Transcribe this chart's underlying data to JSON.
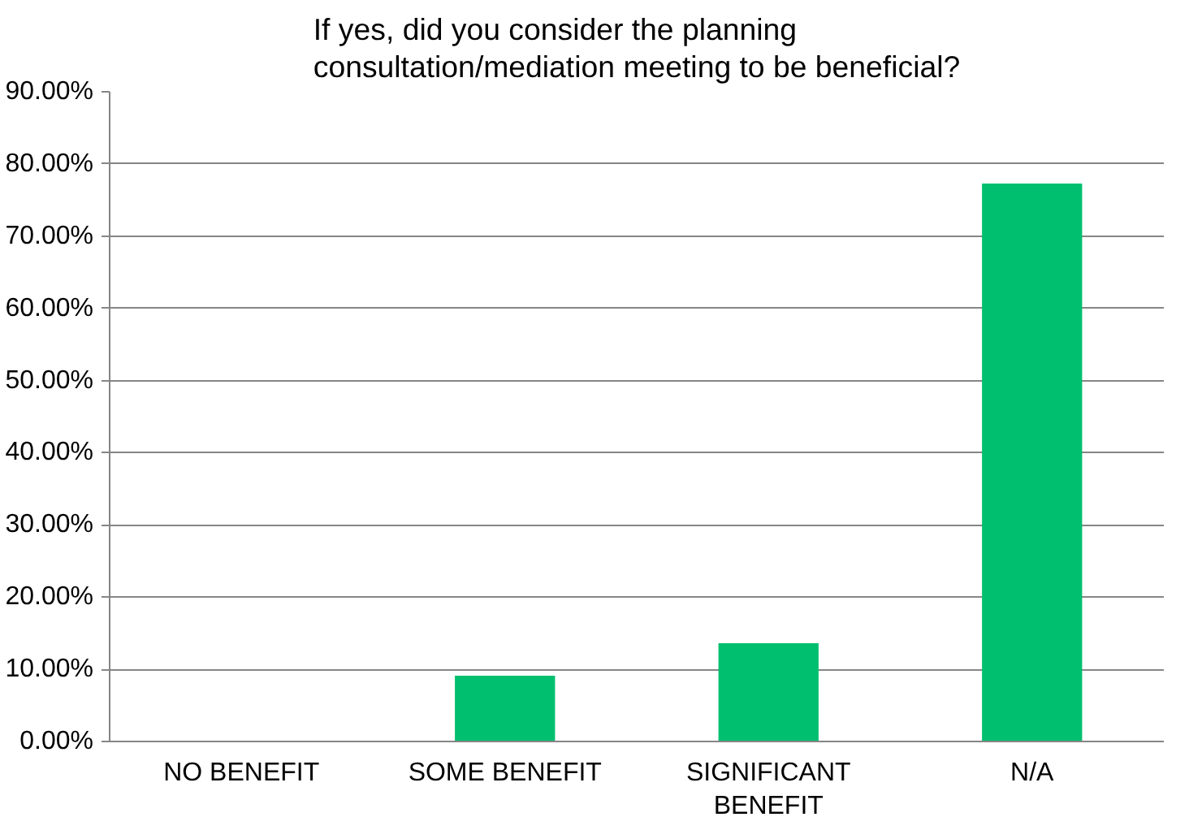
{
  "chart_data": {
    "type": "bar",
    "title": "If yes, did you consider the planning\nconsultation/mediation meeting to be beneficial?",
    "categories": [
      "NO BENEFIT",
      "SOME BENEFIT",
      "SIGNIFICANT BENEFIT",
      "N/A"
    ],
    "values": [
      0,
      9.1,
      13.6,
      77.3
    ],
    "color": "#00bf6f",
    "ylim": [
      0,
      90
    ],
    "yticks": [
      {
        "value": 0,
        "label": "0.00%"
      },
      {
        "value": 10,
        "label": "10.00%"
      },
      {
        "value": 20,
        "label": "20.00%"
      },
      {
        "value": 30,
        "label": "30.00%"
      },
      {
        "value": 40,
        "label": "40.00%"
      },
      {
        "value": 50,
        "label": "50.00%"
      },
      {
        "value": 60,
        "label": "60.00%"
      },
      {
        "value": 70,
        "label": "70.00%"
      },
      {
        "value": 80,
        "label": "80.00%"
      },
      {
        "value": 90,
        "label": "90.00%"
      }
    ],
    "grid": "y"
  }
}
